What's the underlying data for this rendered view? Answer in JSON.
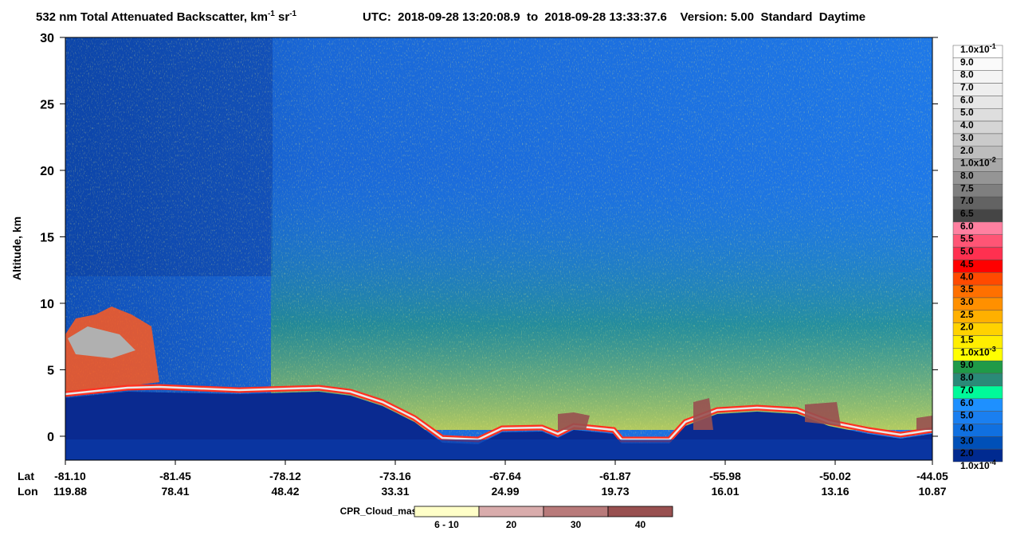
{
  "chart_data": {
    "type": "heatmap",
    "title": {
      "main": "532 nm Total Attenuated Backscatter, km",
      "exp1": "-1",
      "unit2": " sr",
      "exp2": "-1",
      "info": "UTC:  2018-09-28 13:20:08.9  to  2018-09-28 13:33:37.6    Version: 5.00  Standard  Daytime"
    },
    "y_label": "Altitude, km",
    "ylim": [
      -1.8,
      30
    ],
    "yticks": [
      0,
      5,
      10,
      15,
      20,
      25,
      30
    ],
    "x_row_labels": [
      "Lat",
      "Lon"
    ],
    "xticks": [
      {
        "lat": "-81.10",
        "lon": "119.88"
      },
      {
        "lat": "-81.45",
        "lon": "78.41"
      },
      {
        "lat": "-78.12",
        "lon": "48.42"
      },
      {
        "lat": "-73.16",
        "lon": "33.31"
      },
      {
        "lat": "-67.64",
        "lon": "24.99"
      },
      {
        "lat": "-61.87",
        "lon": "19.73"
      },
      {
        "lat": "-55.98",
        "lon": "16.01"
      },
      {
        "lat": "-50.02",
        "lon": "13.16"
      },
      {
        "lat": "-44.05",
        "lon": "10.87"
      }
    ],
    "colorbar": {
      "labels": [
        {
          "text": "1.0x10",
          "exp": "-1"
        },
        "9.0",
        "8.0",
        "7.0",
        "6.0",
        "5.0",
        "4.0",
        "3.0",
        "2.0",
        {
          "text": "1.0x10",
          "exp": "-2"
        },
        "8.0",
        "7.5",
        "7.0",
        "6.5",
        "6.0",
        "5.5",
        "5.0",
        "4.5",
        "4.0",
        "3.5",
        "3.0",
        "2.5",
        "2.0",
        "1.5",
        {
          "text": "1.0x10",
          "exp": "-3"
        },
        "9.0",
        "8.0",
        "7.0",
        "6.0",
        "5.0",
        "4.0",
        "3.0",
        "2.0",
        {
          "text": "1.0x10",
          "exp": "-4"
        }
      ],
      "colors": [
        "#ffffff",
        "#fafafa",
        "#f4f4f4",
        "#eeeeee",
        "#e6e6e6",
        "#dedede",
        "#d5d5d5",
        "#cacaca",
        "#bdbdbd",
        "#a8a8a8",
        "#959595",
        "#7f7f7f",
        "#636363",
        "#454545",
        "#ff80a0",
        "#ff5575",
        "#ff3050",
        "#ff0000",
        "#ff4a00",
        "#ff7000",
        "#ff9000",
        "#ffb000",
        "#ffd200",
        "#ffee00",
        "#ffff00",
        "#1f9a48",
        "#2a8a78",
        "#00fa9a",
        "#1e90ff",
        "#1a7ff0",
        "#1070e0",
        "#0050b8",
        "#002a90"
      ]
    },
    "cpr_legend": {
      "title": "CPR_Cloud_mask",
      "labels": [
        "6 - 10",
        "20",
        "30",
        "40"
      ],
      "colors": [
        "#ffffc8",
        "#d9acac",
        "#b87a7a",
        "#985050"
      ]
    }
  }
}
